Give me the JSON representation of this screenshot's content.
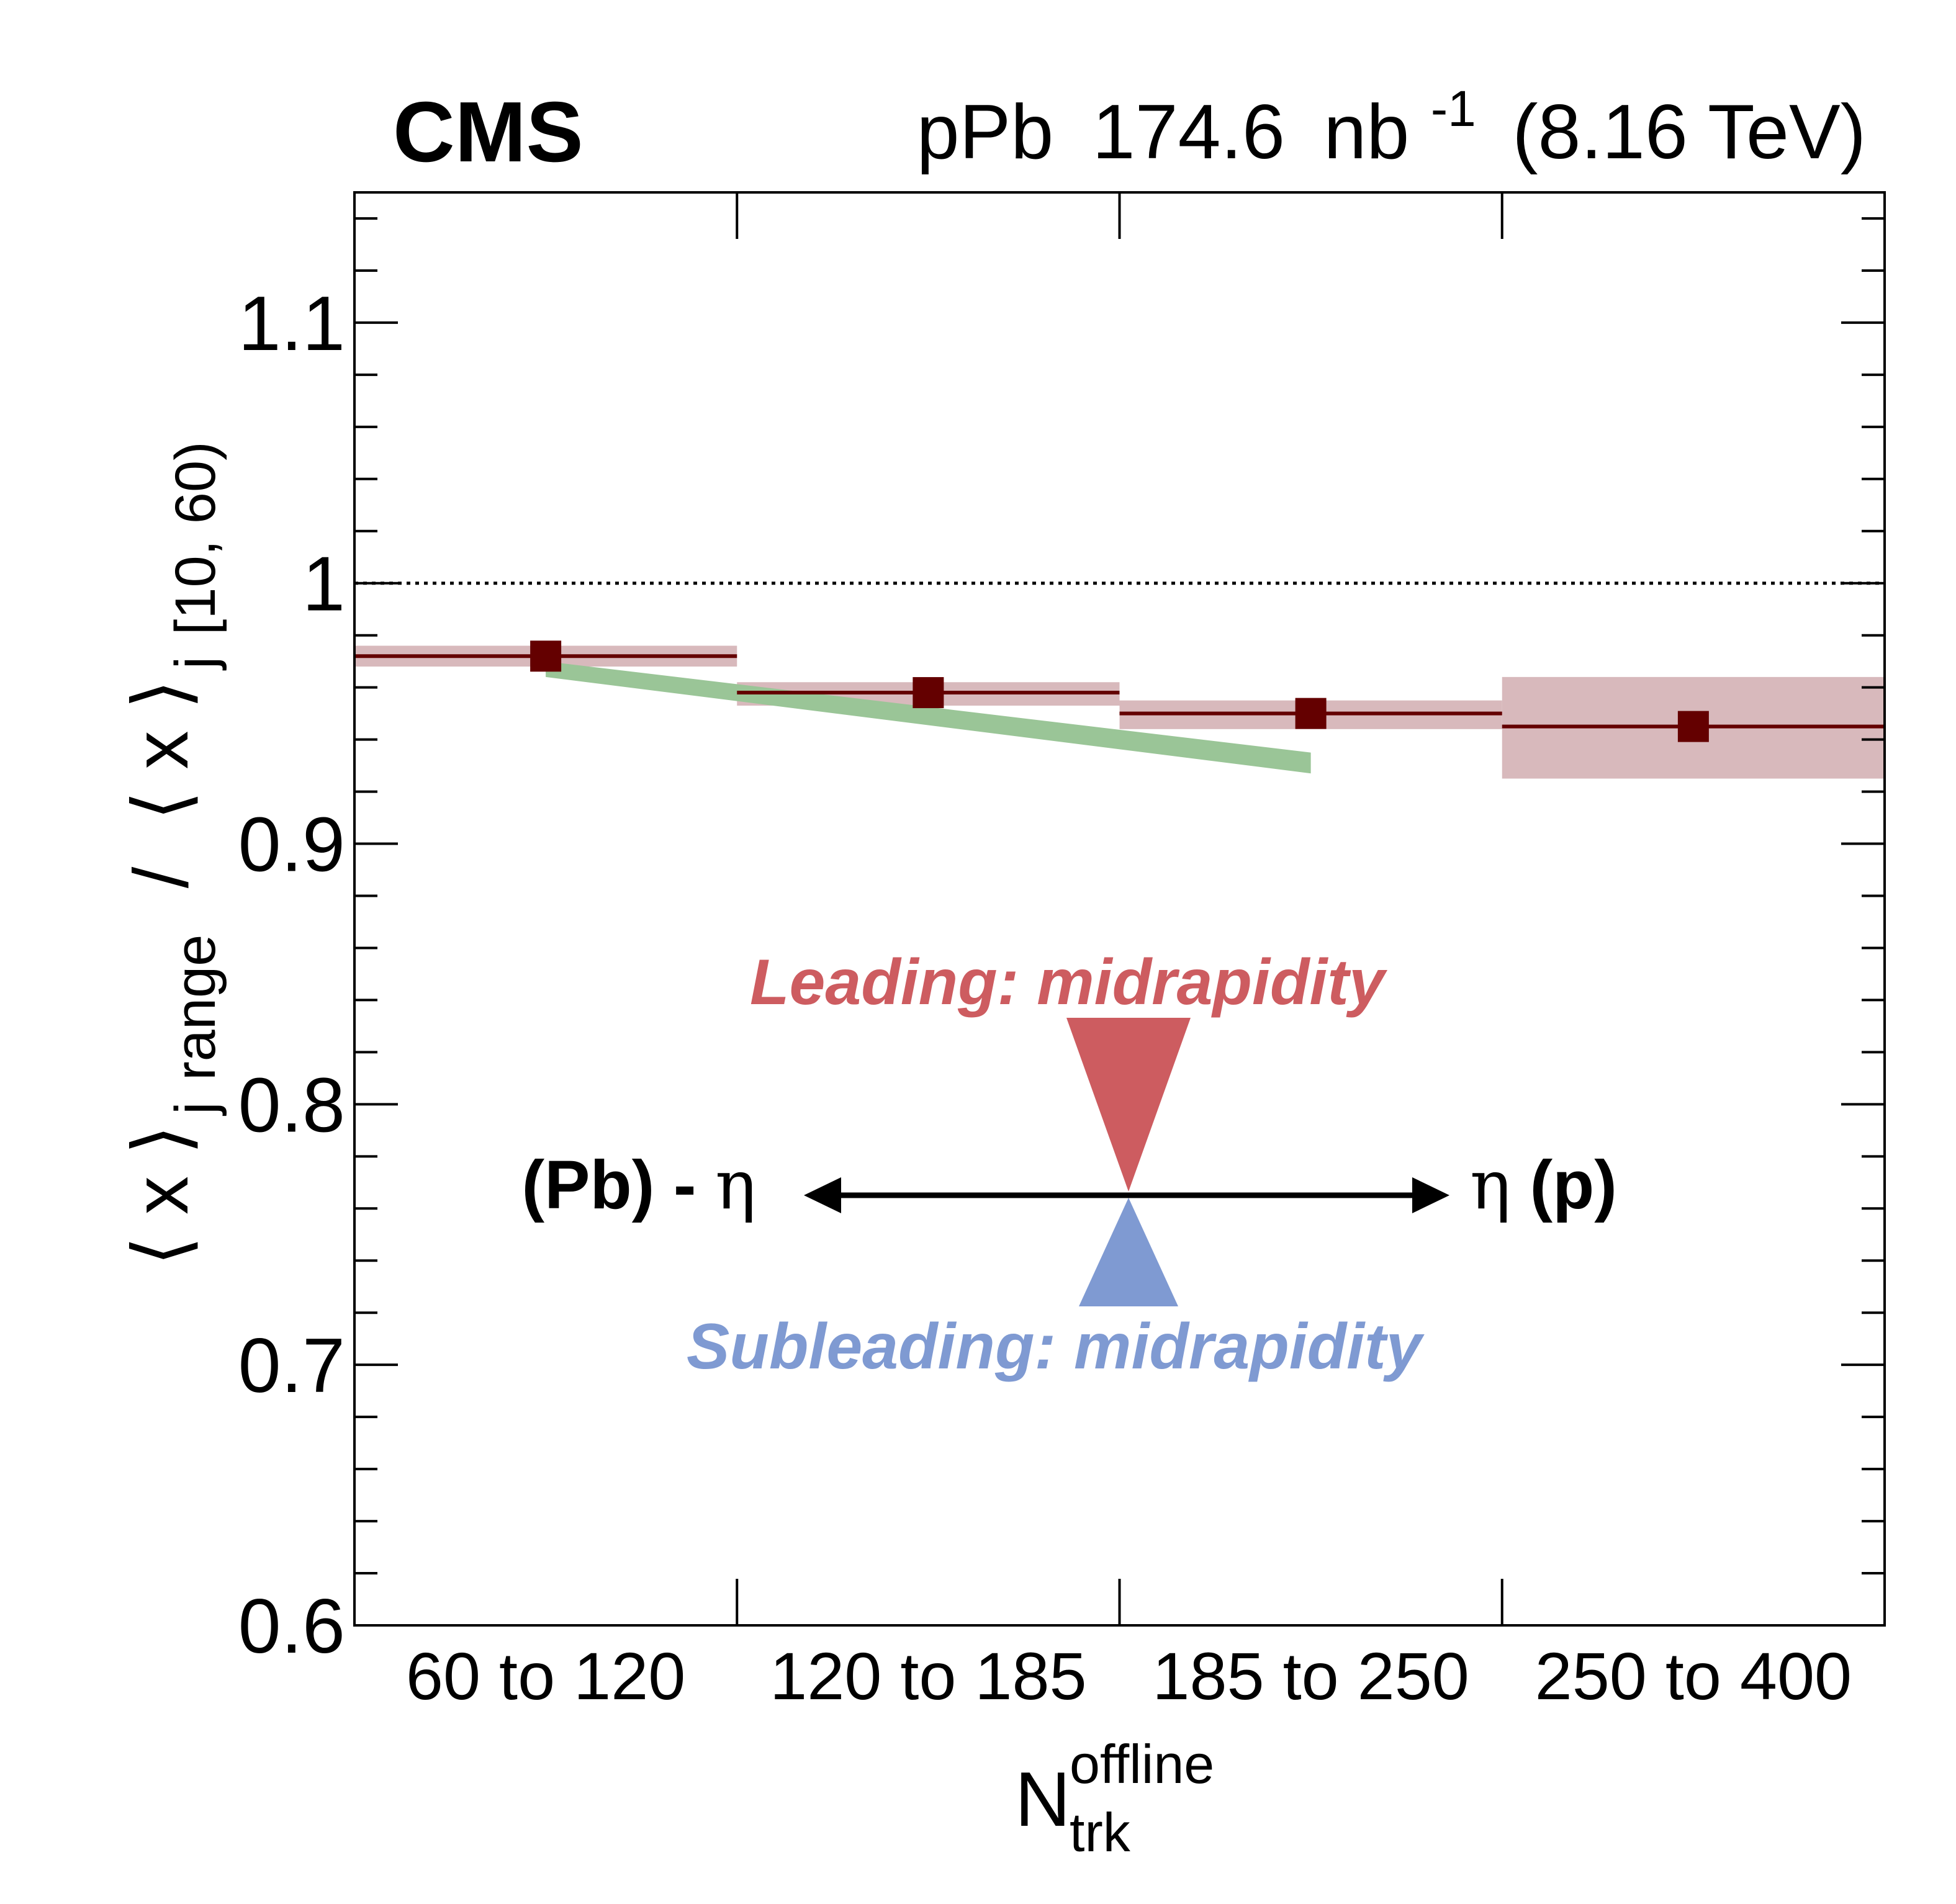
{
  "chart_data": {
    "type": "scatter",
    "experiment": "CMS",
    "collision": "pPb",
    "luminosity_value": "174.6",
    "luminosity_unit": "nb",
    "luminosity_exponent": "-1",
    "energy": "(8.16 TeV)",
    "ylabel": {
      "bracket_open": "⟨",
      "var": "x",
      "bracket_close": "⟩",
      "sub_j": "j",
      "sub_range": "range",
      "slash": "/",
      "sub_ref": "[10, 60)"
    },
    "xlabel": {
      "main": "N",
      "sub": "trk",
      "sup": "offline"
    },
    "ylim": [
      0.6,
      1.15
    ],
    "yticks": [
      "0.6",
      "0.7",
      "0.8",
      "0.9",
      "1",
      "1.1"
    ],
    "reference_line": 1.0,
    "categories": [
      "60 to 120",
      "120 to 185",
      "185 to 250",
      "250 to 400"
    ],
    "series": [
      {
        "values": [
          0.972,
          0.958,
          0.95,
          0.945
        ],
        "syst_low": [
          0.968,
          0.953,
          0.944,
          0.925
        ],
        "syst_high": [
          0.976,
          0.962,
          0.955,
          0.964
        ],
        "color": "#640000",
        "band_color": "#d8b9bc"
      }
    ],
    "trend_band": {
      "x": [
        0.5,
        2.5
      ],
      "y_upper": [
        0.97,
        0.935
      ],
      "y_lower": [
        0.964,
        0.927
      ],
      "color": "#9ac597"
    },
    "annotations": {
      "leading": "Leading: midrapidity",
      "leading_color": "#cd5c60",
      "subleading": "Subleading: midrapidity",
      "subleading_color": "#7f9ad2",
      "left_label_bold": "(Pb) -",
      "left_label_eta": "η",
      "right_label_eta": "η",
      "right_label_bold": " (p)"
    }
  }
}
